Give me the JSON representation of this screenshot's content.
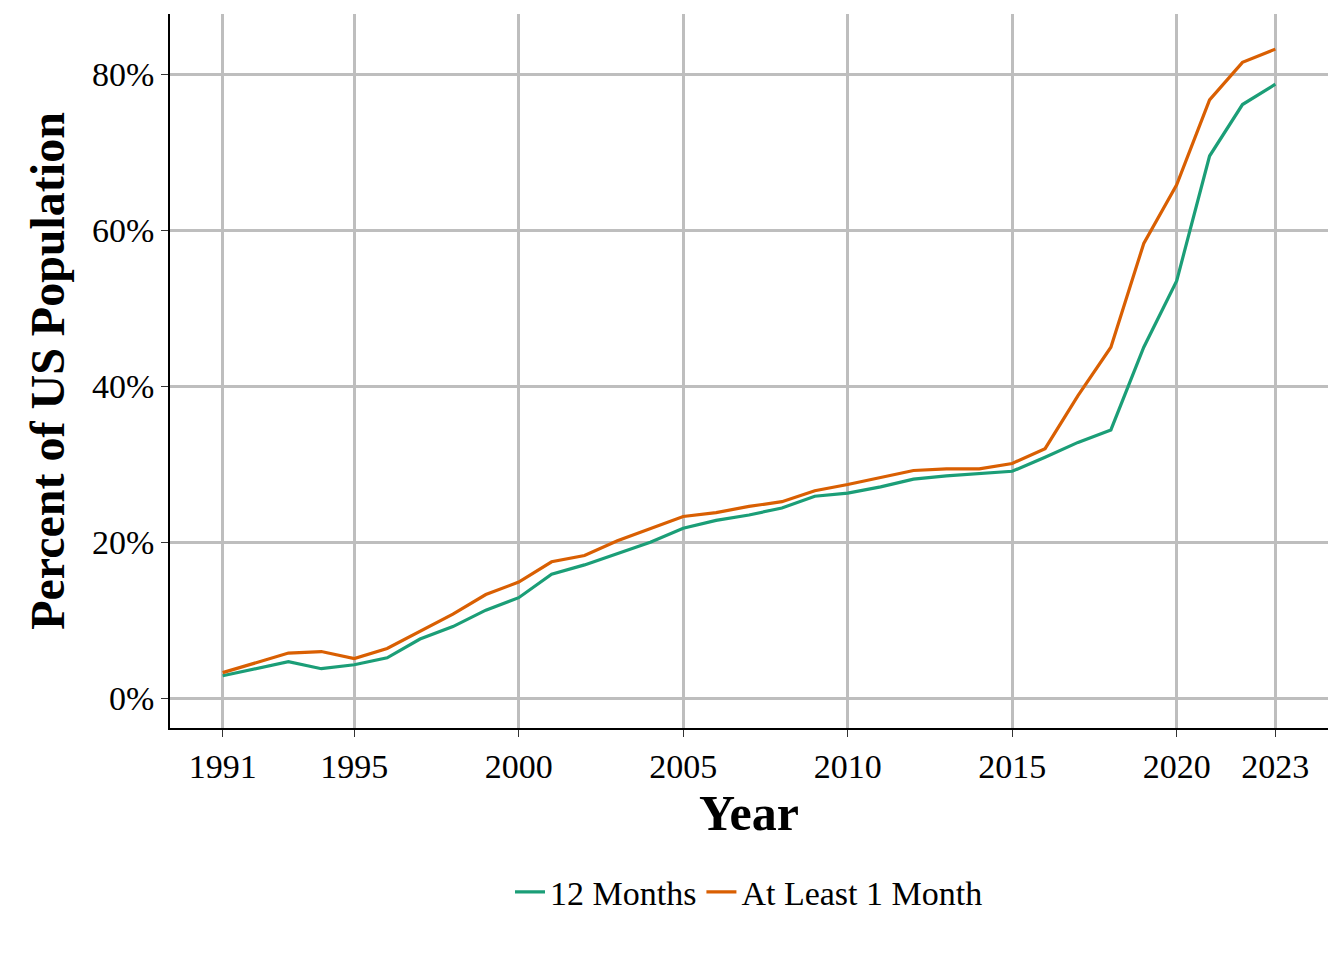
{
  "chart_data": {
    "type": "line",
    "x_label": "Year",
    "y_label": "Percent of US Population",
    "x": [
      1991,
      1992,
      1993,
      1994,
      1995,
      1996,
      1997,
      1998,
      1999,
      2000,
      2001,
      2002,
      2003,
      2004,
      2005,
      2006,
      2007,
      2008,
      2009,
      2010,
      2011,
      2012,
      2013,
      2014,
      2015,
      2016,
      2017,
      2018,
      2019,
      2020,
      2021,
      2022,
      2023
    ],
    "series": [
      {
        "name": "12 Months",
        "color": "#1b9e77",
        "values": [
          2.9,
          3.8,
          4.7,
          3.8,
          4.3,
          5.2,
          7.6,
          9.2,
          11.3,
          12.9,
          15.9,
          17.1,
          18.6,
          20.0,
          21.8,
          22.8,
          23.5,
          24.4,
          25.9,
          26.3,
          27.1,
          28.1,
          28.5,
          28.8,
          29.1,
          30.9,
          32.8,
          34.4,
          45.0,
          53.5,
          69.5,
          76.1,
          78.7
        ]
      },
      {
        "name": "At Least 1 Month",
        "color": "#d95f02",
        "values": [
          3.3,
          4.6,
          5.8,
          6.0,
          5.1,
          6.4,
          8.6,
          10.8,
          13.3,
          14.9,
          17.5,
          18.3,
          20.2,
          21.8,
          23.3,
          23.8,
          24.6,
          25.2,
          26.6,
          27.4,
          28.3,
          29.2,
          29.4,
          29.4,
          30.1,
          32.0,
          38.8,
          45.0,
          58.3,
          65.8,
          76.7,
          81.5,
          83.2
        ]
      }
    ],
    "xlim": [
      1989.4,
      2024.6
    ],
    "ylim": [
      -3.8,
      87.7
    ],
    "xticks": [
      1991,
      1995,
      2000,
      2005,
      2010,
      2015,
      2020,
      2023
    ],
    "yticks": [
      {
        "value": 0,
        "label": "0%"
      },
      {
        "value": 20,
        "label": "20%"
      },
      {
        "value": 40,
        "label": "40%"
      },
      {
        "value": 60,
        "label": "60%"
      },
      {
        "value": 80,
        "label": "80%"
      }
    ],
    "grid": true,
    "legend": "bottom"
  }
}
